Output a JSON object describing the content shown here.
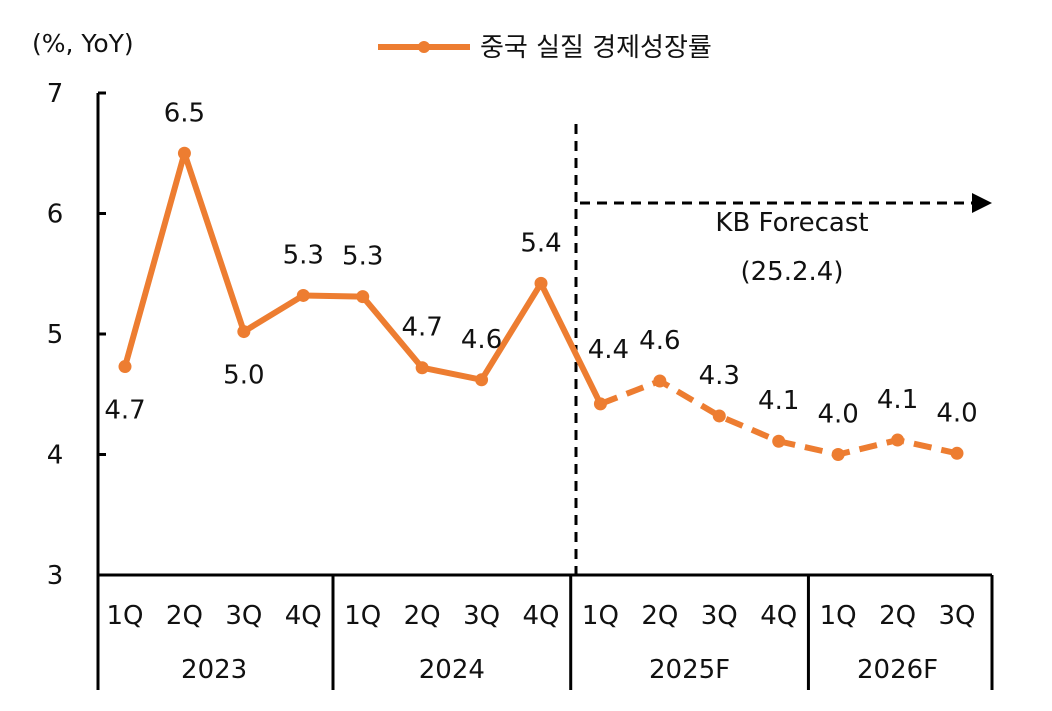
{
  "chart_data": {
    "type": "line",
    "title": "",
    "ylabel": "(%, YoY)",
    "ylim": [
      3,
      7
    ],
    "yticks": [
      "3",
      "4",
      "5",
      "6",
      "7"
    ],
    "grid": false,
    "legend": {
      "position": "top-center",
      "label": "중국 실질 경제성장률"
    },
    "quarters": [
      "1Q",
      "2Q",
      "3Q",
      "4Q",
      "1Q",
      "2Q",
      "3Q",
      "4Q",
      "1Q",
      "2Q",
      "3Q",
      "4Q",
      "1Q",
      "2Q",
      "3Q"
    ],
    "years": [
      "2023",
      "2024",
      "2025F",
      "2026F"
    ],
    "series": [
      {
        "name": "중국 실질 경제성장률",
        "color": "#ED7D31",
        "values": [
          4.7,
          6.5,
          5.0,
          5.3,
          5.3,
          4.7,
          4.6,
          5.4,
          4.4,
          4.6,
          4.3,
          4.1,
          4.0,
          4.1,
          4.0
        ],
        "plot_values": [
          4.73,
          6.5,
          5.02,
          5.32,
          5.31,
          4.72,
          4.62,
          5.42,
          4.42,
          4.61,
          4.32,
          4.11,
          4.0,
          4.12,
          4.01
        ],
        "labels": [
          "4.7",
          "6.5",
          "5.0",
          "5.3",
          "5.3",
          "4.7",
          "4.6",
          "5.4",
          "4.4",
          "4.6",
          "4.3",
          "4.1",
          "4.0",
          "4.1",
          "4.0"
        ],
        "label_side": [
          "below",
          "above",
          "below",
          "above",
          "above",
          "above",
          "above",
          "above",
          "above",
          "above",
          "above",
          "above",
          "above",
          "above",
          "above"
        ],
        "forecast_start_index": 8
      }
    ],
    "annotations": {
      "forecast_label": "KB Forecast",
      "forecast_date": "(25.2.4)"
    }
  }
}
